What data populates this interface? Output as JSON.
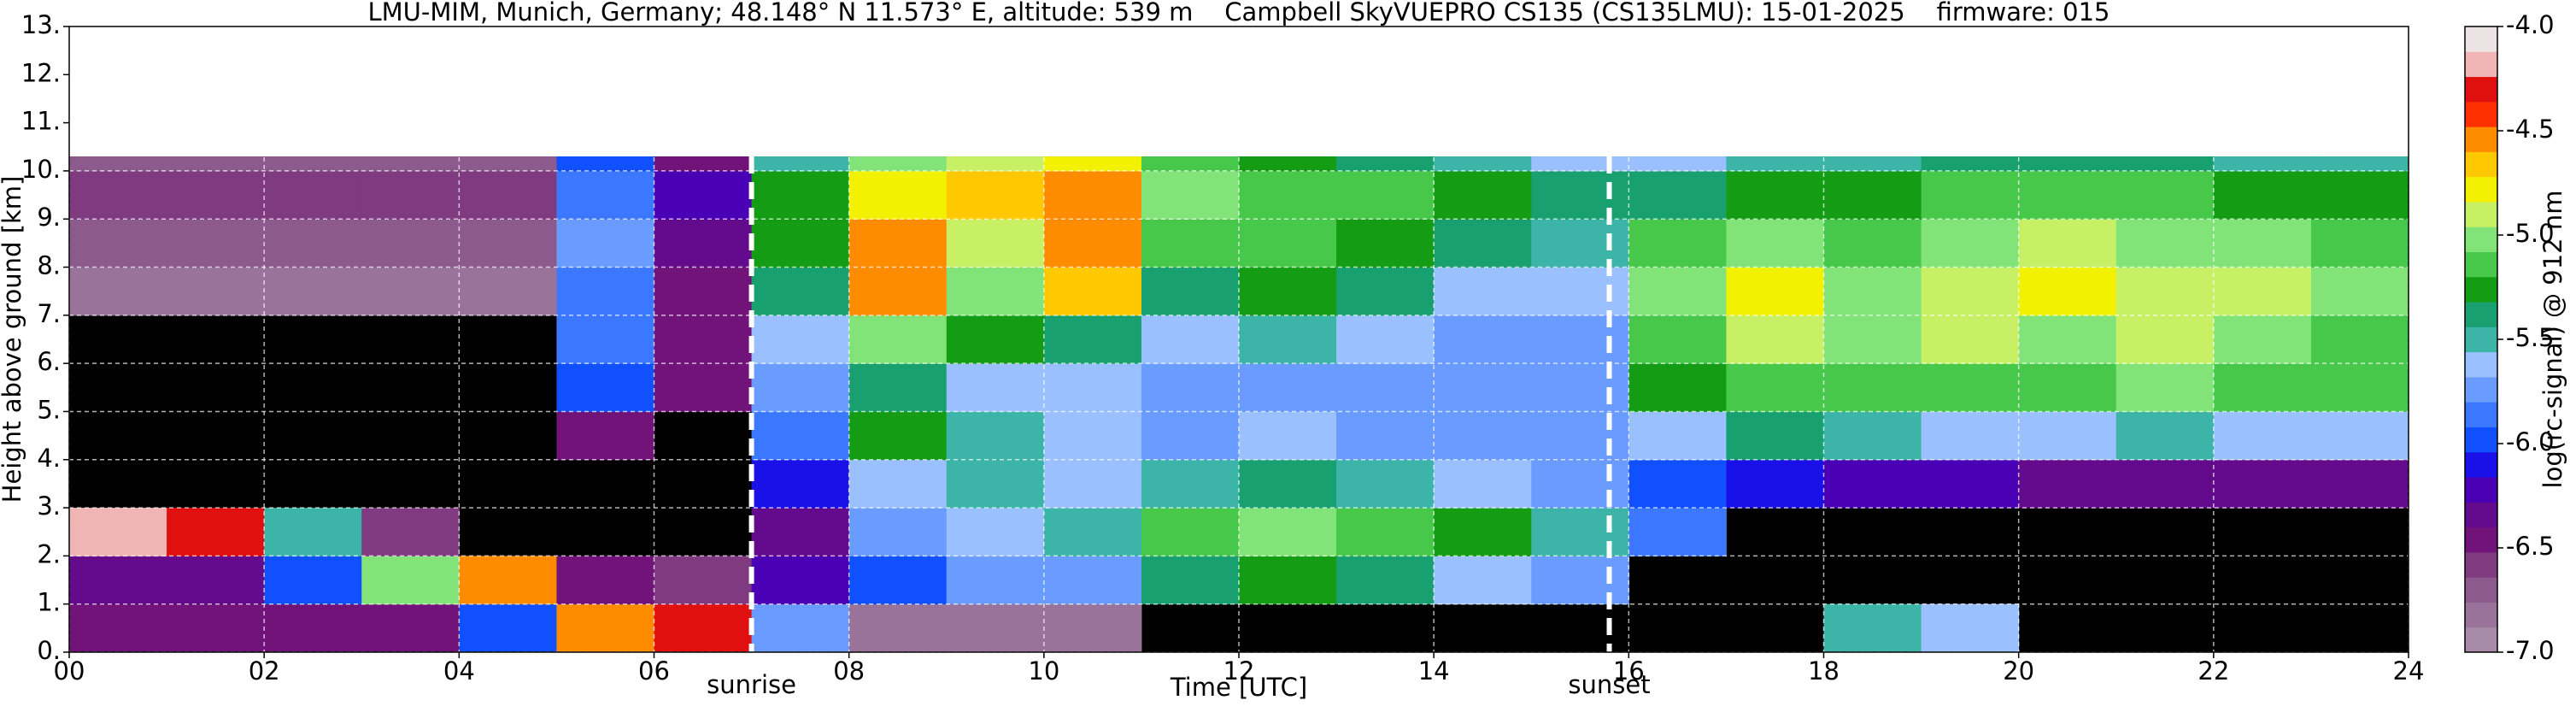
{
  "chart_data": {
    "type": "heatmap",
    "title": "LMU-MIM, Munich, Germany; 48.148° N 11.573° E, altitude: 539 m    Campbell SkyVUEPRO CS135 (CS135LMU): 15-01-2025    firmware: 015",
    "xlabel": "Time [UTC]",
    "ylabel": "Height above ground [km]",
    "colorbar_label": "log(rc-signal) @ 912 nm",
    "xlim": [
      0,
      24
    ],
    "xticks": [
      {
        "value": 0,
        "label": "00"
      },
      {
        "value": 2,
        "label": "02"
      },
      {
        "value": 4,
        "label": "04"
      },
      {
        "value": 6,
        "label": "06"
      },
      {
        "value": 8,
        "label": "08"
      },
      10,
      12,
      14,
      16,
      18,
      20,
      22,
      24
    ],
    "ylim": [
      0,
      13
    ],
    "yticks": [
      {
        "value": 0,
        "label": "0."
      },
      {
        "value": 1,
        "label": "1."
      },
      {
        "value": 2,
        "label": "2."
      },
      {
        "value": 3,
        "label": "3."
      },
      {
        "value": 4,
        "label": "4."
      },
      {
        "value": 5,
        "label": "5."
      },
      {
        "value": 6,
        "label": "6."
      },
      {
        "value": 7,
        "label": "7."
      },
      {
        "value": 8,
        "label": "8."
      },
      {
        "value": 9,
        "label": "9."
      },
      {
        "value": 10,
        "label": "10."
      },
      {
        "value": 11,
        "label": "11."
      },
      {
        "value": 12,
        "label": "12."
      },
      {
        "value": 13,
        "label": "13."
      }
    ],
    "grid": true,
    "zlim": [
      -7,
      -4
    ],
    "zticks": [
      {
        "value": -4,
        "label": "-4.0"
      },
      -4.5,
      {
        "value": -5,
        "label": "-5.0"
      },
      -5.5,
      {
        "value": -6,
        "label": "-6.0"
      },
      -6.5,
      {
        "value": -7,
        "label": "-7.0"
      }
    ],
    "colors": [
      "#a78ba7",
      "#9a739a",
      "#8d5a8d",
      "#7f3a80",
      "#72137a",
      "#640a8c",
      "#4a00b4",
      "#1a10e8",
      "#1050ff",
      "#3c78ff",
      "#6a9cff",
      "#9ac0ff",
      "#3cb4a8",
      "#18a070",
      "#149c14",
      "#48c84a",
      "#82e478",
      "#c8f064",
      "#f2f200",
      "#ffc800",
      "#ff8c00",
      "#ff3000",
      "#e01010",
      "#f0b4b4",
      "#ece4e4"
    ],
    "xbins": [
      0,
      1,
      2,
      3,
      4,
      5,
      6,
      7,
      8,
      9,
      10,
      11,
      12,
      13,
      14,
      15,
      16,
      17,
      18,
      19,
      20,
      21,
      22,
      23,
      24
    ],
    "ybins": [
      0,
      1,
      2,
      3,
      4,
      5,
      6,
      7,
      8,
      9,
      10,
      10.3
    ],
    "z": [
      [
        -6.5,
        -6.5,
        -6.5,
        -6.5,
        -6.0,
        -4.6,
        -4.3,
        -5.8,
        -6.8,
        -6.8,
        -6.8,
        null,
        null,
        null,
        null,
        null,
        null,
        null,
        -5.5,
        -5.6,
        null,
        null,
        null,
        null
      ],
      [
        -6.3,
        -6.3,
        -6.0,
        -5.0,
        -4.6,
        -6.5,
        -6.6,
        -6.2,
        -6.0,
        -5.8,
        -5.7,
        -5.4,
        -5.3,
        -5.4,
        -5.6,
        -5.8,
        null,
        null,
        null,
        null,
        null,
        null,
        null,
        null
      ],
      [
        -4.2,
        -4.3,
        -5.5,
        -6.6,
        null,
        null,
        null,
        -6.3,
        -5.8,
        -5.6,
        -5.5,
        -5.2,
        -5.0,
        -5.1,
        -5.3,
        -5.5,
        -5.9,
        null,
        null,
        null,
        null,
        null,
        null,
        null
      ],
      [
        null,
        null,
        null,
        null,
        null,
        null,
        null,
        -6.1,
        -5.6,
        -5.5,
        -5.6,
        -5.5,
        -5.4,
        -5.5,
        -5.6,
        -5.7,
        -6.0,
        -6.1,
        -6.2,
        -6.2,
        -6.3,
        -6.3,
        -6.3,
        -6.3
      ],
      [
        null,
        null,
        null,
        null,
        null,
        -6.4,
        null,
        -5.9,
        -5.3,
        -5.5,
        -5.6,
        -5.7,
        -5.6,
        -5.7,
        -5.8,
        -5.8,
        -5.6,
        -5.4,
        -5.5,
        -5.6,
        -5.6,
        -5.5,
        -5.6,
        -5.6
      ],
      [
        null,
        null,
        null,
        null,
        null,
        -6.0,
        -6.5,
        -5.8,
        -5.4,
        -5.6,
        -5.6,
        -5.8,
        -5.7,
        -5.8,
        -5.8,
        -5.8,
        -5.3,
        -5.1,
        -5.2,
        -5.1,
        -5.2,
        -5.0,
        -5.1,
        -5.2
      ],
      [
        null,
        null,
        null,
        null,
        null,
        -5.9,
        -6.4,
        -5.6,
        -5.0,
        -5.3,
        -5.4,
        -5.6,
        -5.5,
        -5.6,
        -5.7,
        -5.7,
        -5.1,
        -4.9,
        -5.0,
        -4.9,
        -5.0,
        -4.9,
        -5.0,
        -5.1
      ],
      [
        -6.8,
        -6.8,
        -6.8,
        -6.8,
        -6.8,
        -5.9,
        -6.4,
        -5.4,
        -4.6,
        -5.0,
        -4.7,
        -5.4,
        -5.3,
        -5.4,
        -5.6,
        -5.6,
        -5.0,
        -4.8,
        -5.0,
        -4.9,
        -4.8,
        -4.9,
        -4.9,
        -5.0
      ],
      [
        -6.7,
        -6.7,
        -6.7,
        -6.7,
        -6.7,
        -5.7,
        -6.3,
        -5.3,
        -4.6,
        -4.9,
        -4.6,
        -5.2,
        -5.2,
        -5.3,
        -5.4,
        -5.5,
        -5.2,
        -5.0,
        -5.1,
        -5.0,
        -4.9,
        -5.0,
        -5.0,
        -5.1
      ],
      [
        -6.6,
        -6.6,
        -6.6,
        -6.6,
        -6.6,
        -5.9,
        -6.2,
        -5.3,
        -4.8,
        -4.7,
        -4.6,
        -5.0,
        -5.1,
        -5.2,
        -5.3,
        -5.4,
        -5.4,
        -5.3,
        -5.3,
        -5.2,
        -5.2,
        -5.2,
        -5.3,
        -5.3
      ],
      [
        -6.7,
        -6.7,
        -6.7,
        -6.7,
        -6.7,
        -6.0,
        -6.4,
        -5.5,
        -5.0,
        -4.9,
        -4.8,
        -5.2,
        -5.3,
        -5.4,
        -5.5,
        -5.6,
        -5.6,
        -5.5,
        -5.5,
        -5.4,
        -5.4,
        -5.4,
        -5.5,
        -5.5
      ]
    ],
    "annotations": [
      {
        "text": "sunrise",
        "x": 7.0
      },
      {
        "text": "sunset",
        "x": 15.8
      }
    ]
  }
}
